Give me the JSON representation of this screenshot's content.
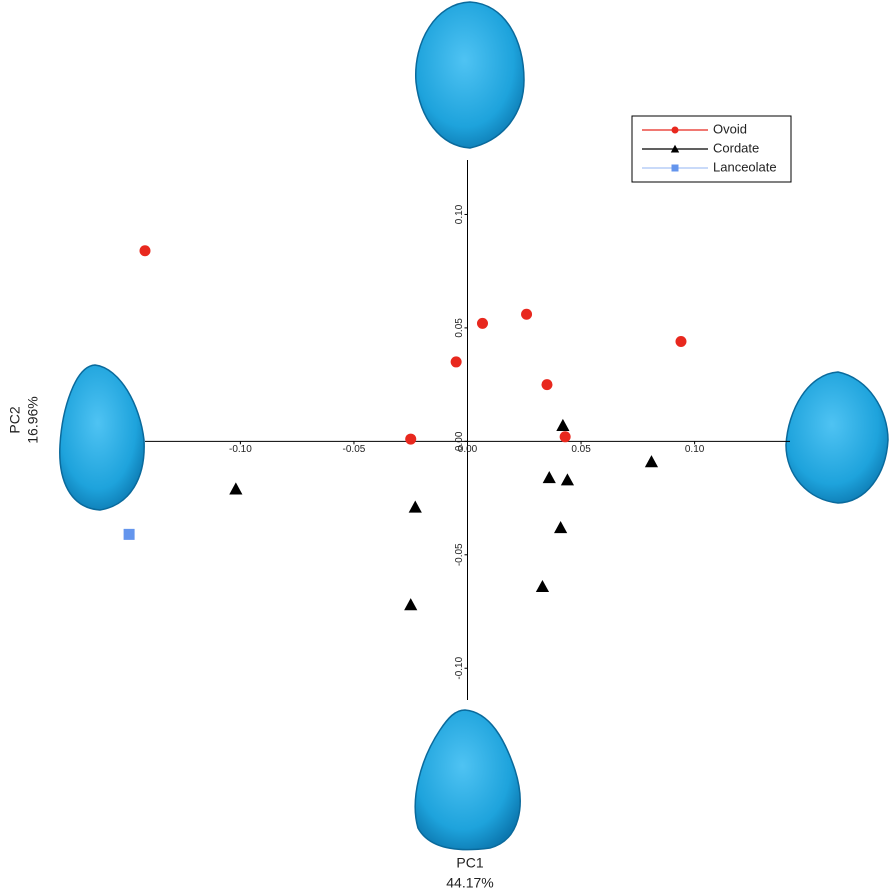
{
  "chart_data": {
    "type": "scatter",
    "xlabel": "PC1",
    "xlabel_variance": "44.17%",
    "ylabel": "PC2",
    "ylabel_variance": "16.96%",
    "xlim": [
      -0.142,
      0.142
    ],
    "ylim": [
      -0.114,
      0.124
    ],
    "xticks": [
      {
        "value": -0.1,
        "label": "-0.10"
      },
      {
        "value": -0.05,
        "label": "-0.05"
      },
      {
        "value": 0,
        "label": "0.00"
      },
      {
        "value": 0.05,
        "label": "0.05"
      },
      {
        "value": 0.1,
        "label": "0.10"
      }
    ],
    "yticks": [
      {
        "value": -0.1,
        "label": "-0.10"
      },
      {
        "value": -0.05,
        "label": "-0.05"
      },
      {
        "value": 0,
        "label": "0.00"
      },
      {
        "value": 0.05,
        "label": "0.05"
      },
      {
        "value": 0.1,
        "label": "0.10"
      }
    ],
    "legend": "upper right",
    "series": [
      {
        "name": "Ovoid",
        "color": "#e8281e",
        "marker": "circle",
        "x": [
          -0.142,
          0.0066,
          0.026,
          -0.005,
          0.035,
          0.094,
          -0.025,
          0.043
        ],
        "values": [
          0.084,
          0.052,
          0.056,
          0.035,
          0.025,
          0.044,
          0.001,
          0.002
        ]
      },
      {
        "name": "Cordate",
        "color": "#000000",
        "marker": "triangle",
        "x": [
          0.042,
          -0.102,
          -0.023,
          0.036,
          0.044,
          0.081,
          0.041,
          0.033,
          -0.025
        ],
        "values": [
          0.007,
          -0.021,
          -0.029,
          -0.016,
          -0.017,
          -0.009,
          -0.038,
          -0.064,
          -0.072
        ]
      },
      {
        "name": "Lanceolate",
        "color": "#6495ed",
        "marker": "square",
        "x": [
          -0.149
        ],
        "values": [
          -0.041
        ]
      }
    ]
  }
}
